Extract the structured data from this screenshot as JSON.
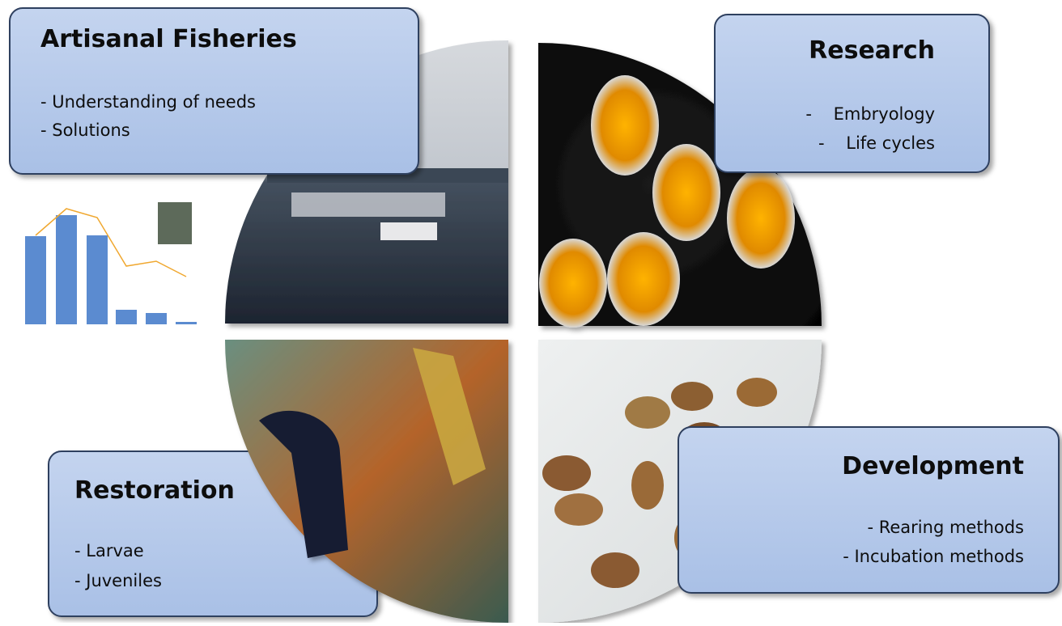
{
  "boxes": [
    {
      "title": "Artisanal Fisheries",
      "items": [
        "- Understanding of needs",
        "- Solutions"
      ]
    },
    {
      "title": "Research",
      "items": [
        "-    Embryology",
        "-    Life cycles"
      ]
    },
    {
      "title": "Restoration",
      "items": [
        "- Larvae",
        "- Juveniles"
      ]
    },
    {
      "title": "Development",
      "items": [
        "- Rearing methods",
        "- Incubation methods"
      ]
    }
  ]
}
